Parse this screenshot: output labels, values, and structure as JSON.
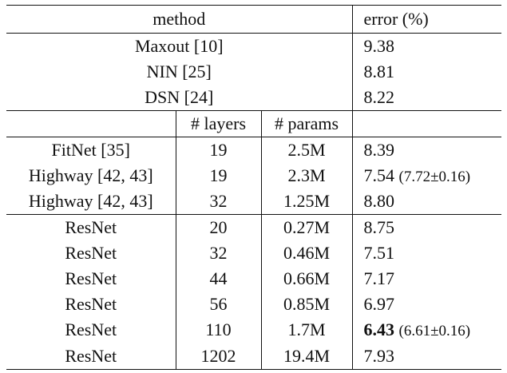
{
  "header": {
    "method": "method",
    "error": "error (%)"
  },
  "group_a": [
    {
      "method": "Maxout [10]",
      "error": "9.38"
    },
    {
      "method": "NIN [25]",
      "error": "8.81"
    },
    {
      "method": "DSN [24]",
      "error": "8.22"
    }
  ],
  "subheader": {
    "layers": "# layers",
    "params": "# params"
  },
  "group_b": [
    {
      "method": "FitNet [35]",
      "layers": "19",
      "params": "2.5M",
      "error": "8.39",
      "note": ""
    },
    {
      "method": "Highway [42, 43]",
      "layers": "19",
      "params": "2.3M",
      "error": "7.54",
      "note": "(7.72±0.16)"
    },
    {
      "method": "Highway [42, 43]",
      "layers": "32",
      "params": "1.25M",
      "error": "8.80",
      "note": ""
    }
  ],
  "group_c": [
    {
      "method": "ResNet",
      "layers": "20",
      "params": "0.27M",
      "error": "8.75",
      "note": ""
    },
    {
      "method": "ResNet",
      "layers": "32",
      "params": "0.46M",
      "error": "7.51",
      "note": ""
    },
    {
      "method": "ResNet",
      "layers": "44",
      "params": "0.66M",
      "error": "7.17",
      "note": ""
    },
    {
      "method": "ResNet",
      "layers": "56",
      "params": "0.85M",
      "error": "6.97",
      "note": ""
    },
    {
      "method": "ResNet",
      "layers": "110",
      "params": "1.7M",
      "error": "6.43",
      "note": "(6.61±0.16)"
    },
    {
      "method": "ResNet",
      "layers": "1202",
      "params": "19.4M",
      "error": "7.93",
      "note": ""
    }
  ]
}
